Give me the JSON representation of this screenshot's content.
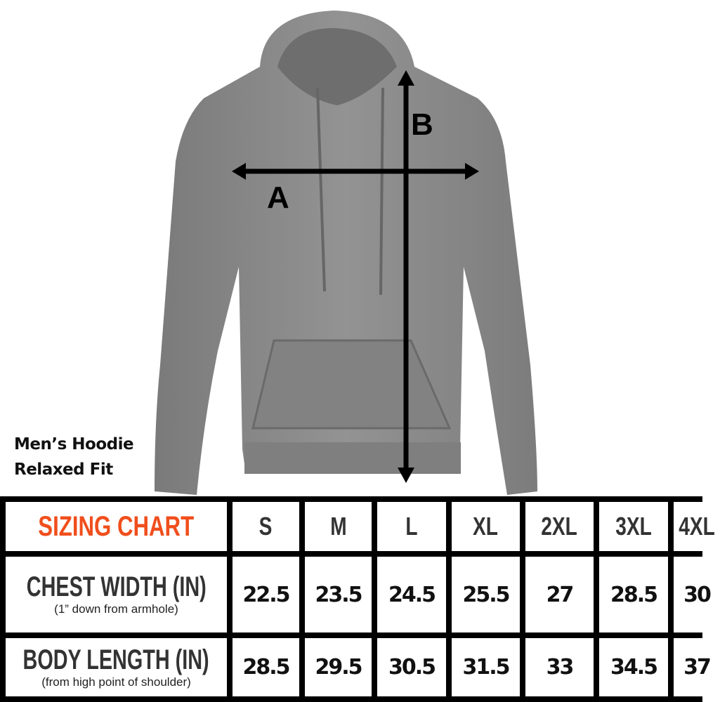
{
  "diagram": {
    "label_a": "A",
    "label_b": "B"
  },
  "caption": {
    "line1": "Men’s Hoodie",
    "line2": "Relaxed Fit"
  },
  "table": {
    "title": "SIZING CHART",
    "sizes": [
      "S",
      "M",
      "L",
      "XL",
      "2XL",
      "3XL",
      "4XL"
    ],
    "rows": [
      {
        "label": "CHEST WIDTH (IN)",
        "sublabel": "(1” down from armhole)",
        "values": [
          "22.5",
          "23.5",
          "24.5",
          "25.5",
          "27",
          "28.5",
          "30"
        ]
      },
      {
        "label": "BODY LENGTH (IN)",
        "sublabel": "(from high point of shoulder)",
        "values": [
          "28.5",
          "29.5",
          "30.5",
          "31.5",
          "33",
          "34.5",
          "37"
        ]
      }
    ]
  },
  "colors": {
    "title": "#f04e1c",
    "garment": "#8a8a8a"
  }
}
